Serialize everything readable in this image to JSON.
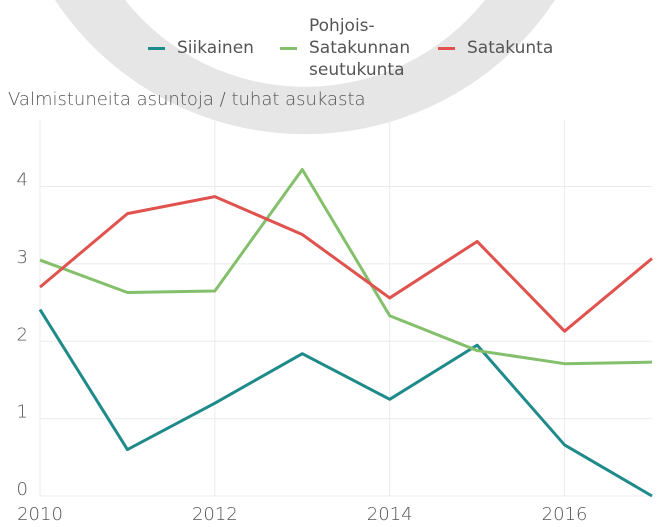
{
  "chart_data": {
    "type": "line",
    "y_label": "Valmistuneita asuntoja / tuhat asukasta",
    "x": [
      2010,
      2011,
      2012,
      2013,
      2014,
      2015,
      2016,
      2017
    ],
    "series": [
      {
        "name": "Siikainen",
        "color": "#1f8a8a",
        "values": [
          2.41,
          0.6,
          1.2,
          1.84,
          1.25,
          1.95,
          0.66,
          0.0
        ]
      },
      {
        "name": "Pohjois-Satakunnan seutukunta",
        "color": "#84c06b",
        "values": [
          3.05,
          2.63,
          2.65,
          4.22,
          2.33,
          1.88,
          1.71,
          1.73
        ]
      },
      {
        "name": "Satakunta",
        "color": "#e0524e",
        "values": [
          2.7,
          3.65,
          3.87,
          3.38,
          2.56,
          3.29,
          2.13,
          3.07
        ]
      }
    ],
    "xlim": [
      2010,
      2017
    ],
    "xticks": [
      2010,
      2012,
      2014,
      2016
    ],
    "ylim": [
      0,
      4.86
    ],
    "yticks": [
      0,
      1,
      2,
      3,
      4
    ],
    "grid": true
  }
}
